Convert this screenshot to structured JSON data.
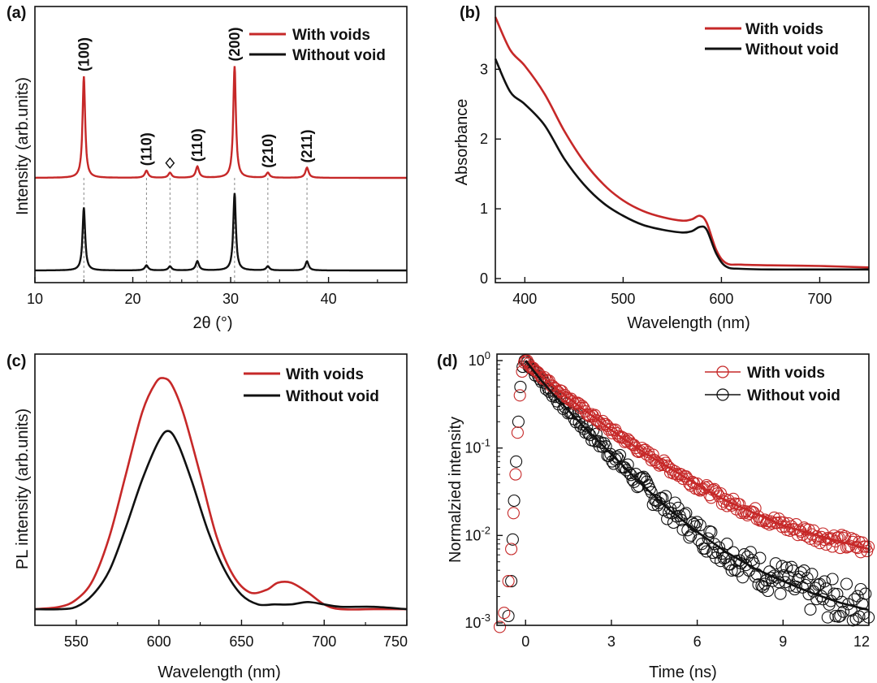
{
  "colors": {
    "with_voids": "#c62828",
    "without_void": "#111111"
  },
  "chart_data": [
    {
      "panel": "(a)",
      "type": "line",
      "xlabel": "2θ (°)",
      "ylabel": "Intensity (arb.units)",
      "xlim": [
        10,
        48
      ],
      "xticks": [
        "10",
        "20",
        "30",
        "40"
      ],
      "legend": {
        "position": "top-right",
        "entries": [
          "With voids",
          "Without void"
        ]
      },
      "peaks": [
        {
          "x": 15.0,
          "label": "(100)",
          "with_voids": 1.0,
          "without_void": 0.62
        },
        {
          "x": 21.4,
          "label": "(110)",
          "with_voids": 0.07,
          "without_void": 0.05
        },
        {
          "x": 23.8,
          "label": "◇",
          "with_voids": 0.05,
          "without_void": 0.04
        },
        {
          "x": 26.6,
          "label": "(110)",
          "with_voids": 0.11,
          "without_void": 0.09
        },
        {
          "x": 30.4,
          "label": "(200)",
          "with_voids": 1.1,
          "without_void": 0.76
        },
        {
          "x": 33.8,
          "label": "(210)",
          "with_voids": 0.05,
          "without_void": 0.04
        },
        {
          "x": 37.8,
          "label": "(211)",
          "with_voids": 0.1,
          "without_void": 0.09
        }
      ],
      "series": [
        {
          "name": "With voids",
          "offset": 0.8
        },
        {
          "name": "Without void",
          "offset": 0
        }
      ]
    },
    {
      "panel": "(b)",
      "type": "line",
      "xlabel": "Wavelength (nm)",
      "ylabel": "Absorbance",
      "xlim": [
        370,
        750
      ],
      "ylim": [
        0,
        3.9
      ],
      "xticks": [
        "400",
        "500",
        "600",
        "700"
      ],
      "yticks": [
        "0",
        "1",
        "2",
        "3"
      ],
      "legend": {
        "position": "top-right",
        "entries": [
          "With voids",
          "Without void"
        ]
      },
      "series": [
        {
          "name": "With voids",
          "x": [
            370,
            385,
            400,
            420,
            440,
            460,
            480,
            500,
            520,
            540,
            560,
            570,
            578,
            585,
            595,
            605,
            620,
            650,
            700,
            750
          ],
          "y": [
            3.75,
            3.28,
            3.05,
            2.65,
            2.12,
            1.68,
            1.35,
            1.12,
            0.97,
            0.88,
            0.83,
            0.85,
            0.9,
            0.8,
            0.4,
            0.22,
            0.2,
            0.19,
            0.18,
            0.16
          ]
        },
        {
          "name": "Without void",
          "x": [
            370,
            385,
            400,
            420,
            440,
            460,
            480,
            500,
            520,
            540,
            560,
            570,
            578,
            585,
            595,
            605,
            620,
            650,
            700,
            750
          ],
          "y": [
            3.15,
            2.68,
            2.5,
            2.2,
            1.72,
            1.35,
            1.08,
            0.9,
            0.77,
            0.7,
            0.66,
            0.68,
            0.74,
            0.7,
            0.35,
            0.17,
            0.14,
            0.13,
            0.13,
            0.13
          ]
        }
      ]
    },
    {
      "panel": "(c)",
      "type": "line",
      "xlabel": "Wavelength (nm)",
      "ylabel": "PL intensity (arb.units)",
      "xlim": [
        525,
        750
      ],
      "ylim": [
        0,
        1.1
      ],
      "xticks": [
        "550",
        "600",
        "650",
        "700",
        "750"
      ],
      "legend": {
        "position": "top-right",
        "entries": [
          "With voids",
          "Without void"
        ]
      },
      "series": [
        {
          "name": "With voids",
          "x": [
            525,
            540,
            550,
            560,
            570,
            580,
            590,
            598,
            603,
            608,
            615,
            625,
            635,
            645,
            655,
            665,
            672,
            680,
            690,
            700,
            710,
            730,
            750
          ],
          "y": [
            0.04,
            0.05,
            0.08,
            0.16,
            0.34,
            0.6,
            0.86,
            0.98,
            1.0,
            0.97,
            0.85,
            0.6,
            0.34,
            0.18,
            0.11,
            0.12,
            0.15,
            0.15,
            0.11,
            0.06,
            0.04,
            0.04,
            0.04
          ]
        },
        {
          "name": "Without void",
          "x": [
            525,
            540,
            550,
            560,
            570,
            580,
            590,
            600,
            606,
            612,
            620,
            630,
            640,
            650,
            660,
            670,
            680,
            690,
            700,
            710,
            730,
            750
          ],
          "y": [
            0.04,
            0.04,
            0.05,
            0.1,
            0.2,
            0.38,
            0.58,
            0.74,
            0.78,
            0.72,
            0.57,
            0.36,
            0.2,
            0.1,
            0.06,
            0.06,
            0.06,
            0.07,
            0.06,
            0.05,
            0.05,
            0.04
          ]
        }
      ]
    },
    {
      "panel": "(d)",
      "type": "scatter",
      "xlabel": "Time (ns)",
      "ylabel": "Normalzied intensity",
      "xlim": [
        -1,
        12
      ],
      "ylim": [
        0.001,
        1
      ],
      "yscale": "log",
      "xticks": [
        "0",
        "3",
        "6",
        "9",
        "12"
      ],
      "yticks": [
        {
          "base": "10",
          "exp": "0"
        },
        {
          "base": "10",
          "exp": "-1"
        },
        {
          "base": "10",
          "exp": "-2"
        },
        {
          "base": "10",
          "exp": "-3"
        }
      ],
      "legend": {
        "position": "top-right",
        "entries": [
          "With voids",
          "Without void"
        ]
      },
      "series": [
        {
          "name": "With voids",
          "fit": [
            [
              0,
              1.0
            ],
            [
              0.5,
              0.7
            ],
            [
              1,
              0.5
            ],
            [
              2,
              0.28
            ],
            [
              3,
              0.16
            ],
            [
              4,
              0.095
            ],
            [
              5,
              0.06
            ],
            [
              6,
              0.038
            ],
            [
              7,
              0.025
            ],
            [
              8,
              0.018
            ],
            [
              9,
              0.013
            ],
            [
              10,
              0.0105
            ],
            [
              11,
              0.0085
            ],
            [
              12,
              0.007
            ]
          ]
        },
        {
          "name": "Without void",
          "fit": [
            [
              0,
              1.0
            ],
            [
              0.5,
              0.62
            ],
            [
              1,
              0.4
            ],
            [
              2,
              0.18
            ],
            [
              3,
              0.085
            ],
            [
              4,
              0.04
            ],
            [
              5,
              0.02
            ],
            [
              6,
              0.011
            ],
            [
              7,
              0.0065
            ],
            [
              8,
              0.0042
            ],
            [
              9,
              0.003
            ],
            [
              10,
              0.0022
            ],
            [
              11,
              0.0017
            ],
            [
              12,
              0.0014
            ]
          ]
        }
      ]
    }
  ]
}
